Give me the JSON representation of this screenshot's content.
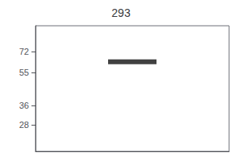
{
  "chart_data": {
    "type": "scatter",
    "title": "293",
    "categories": [
      null
    ],
    "values": [
      63
    ],
    "color": "#111111",
    "marker": "rect",
    "log": "y",
    "ylim": [
      20,
      100
    ],
    "yticks": [
      72,
      55,
      36,
      28
    ],
    "grid": false,
    "tick_labels": "y"
  }
}
